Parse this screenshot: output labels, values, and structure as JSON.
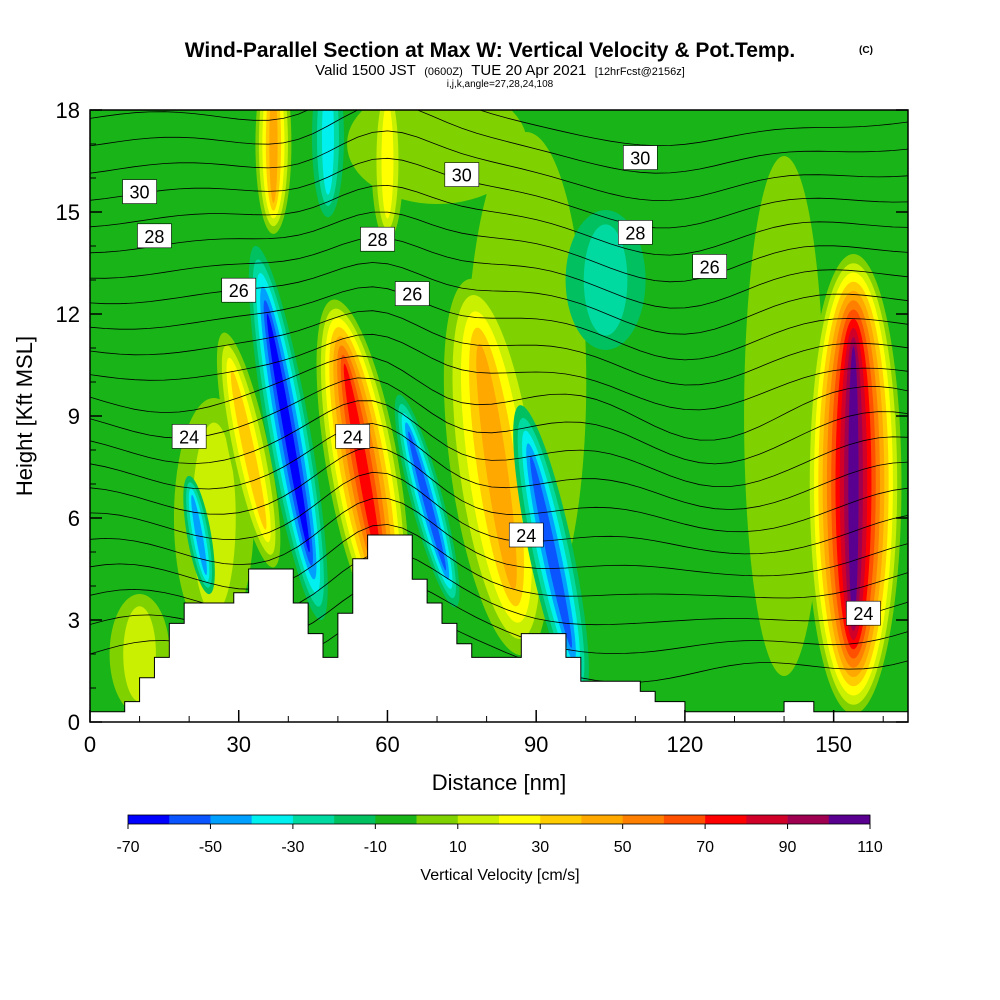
{
  "chart_data": {
    "type": "heatmap",
    "title": "Wind-Parallel Section at Max W: Vertical Velocity & Pot.Temp.",
    "title_mark": "(C)",
    "subtitle_valid": "Valid 1500 JST",
    "subtitle_utc": "(0600Z)",
    "subtitle_date": "TUE 20 Apr 2021",
    "subtitle_fcst": "[12hrFcst@2156z]",
    "subtitle_ijk": "i,j,k,angle=27,28,24,108",
    "xlabel": "Distance [nm]",
    "ylabel": "Height [Kft MSL]",
    "xlim": [
      0,
      165
    ],
    "ylim": [
      0,
      18
    ],
    "xticks": [
      "0",
      "30",
      "60",
      "90",
      "120",
      "150"
    ],
    "yticks": [
      "0",
      "3",
      "6",
      "9",
      "12",
      "15",
      "18"
    ],
    "colorbar": {
      "label": "Vertical Velocity [cm/s]",
      "tick_labels": [
        "-70",
        "-50",
        "-30",
        "-10",
        "10",
        "30",
        "50",
        "70",
        "90",
        "110"
      ],
      "colors": [
        "#0000ff",
        "#0a55ff",
        "#00a0ff",
        "#00f0f0",
        "#00d9a0",
        "#00c060",
        "#18b418",
        "#7fd200",
        "#c8f000",
        "#ffff00",
        "#ffcc00",
        "#ffa800",
        "#ff8000",
        "#ff5000",
        "#ff0000",
        "#d00028",
        "#a00050",
        "#5a0090"
      ]
    },
    "contour_labels": [
      {
        "value": "30",
        "x": 10,
        "y": 15.6
      },
      {
        "value": "30",
        "x": 75,
        "y": 16.1
      },
      {
        "value": "30",
        "x": 111,
        "y": 16.6
      },
      {
        "value": "28",
        "x": 13,
        "y": 14.3
      },
      {
        "value": "28",
        "x": 58,
        "y": 14.2
      },
      {
        "value": "28",
        "x": 110,
        "y": 14.4
      },
      {
        "value": "26",
        "x": 30,
        "y": 12.7
      },
      {
        "value": "26",
        "x": 65,
        "y": 12.6
      },
      {
        "value": "26",
        "x": 125,
        "y": 13.4
      },
      {
        "value": "24",
        "x": 20,
        "y": 8.4
      },
      {
        "value": "24",
        "x": 53,
        "y": 8.4
      },
      {
        "value": "24",
        "x": 88,
        "y": 5.5
      },
      {
        "value": "24",
        "x": 156,
        "y": 3.2
      }
    ],
    "terrain": [
      [
        0,
        0.3
      ],
      [
        7,
        0.6
      ],
      [
        10,
        1.3
      ],
      [
        13,
        1.9
      ],
      [
        16,
        2.9
      ],
      [
        19,
        3.5
      ],
      [
        29,
        3.8
      ],
      [
        32,
        4.5
      ],
      [
        41,
        3.5
      ],
      [
        44,
        2.6
      ],
      [
        47,
        1.9
      ],
      [
        50,
        3.2
      ],
      [
        53,
        4.8
      ],
      [
        56,
        5.5
      ],
      [
        62,
        5.5
      ],
      [
        65,
        4.2
      ],
      [
        68,
        3.5
      ],
      [
        71,
        2.9
      ],
      [
        74,
        2.3
      ],
      [
        77,
        1.9
      ],
      [
        84,
        1.9
      ],
      [
        87,
        2.6
      ],
      [
        96,
        1.9
      ],
      [
        99,
        1.2
      ],
      [
        111,
        0.9
      ],
      [
        114,
        0.6
      ],
      [
        120,
        0.3
      ],
      [
        140,
        0.6
      ],
      [
        146,
        0.3
      ],
      [
        165,
        0.3
      ]
    ]
  }
}
